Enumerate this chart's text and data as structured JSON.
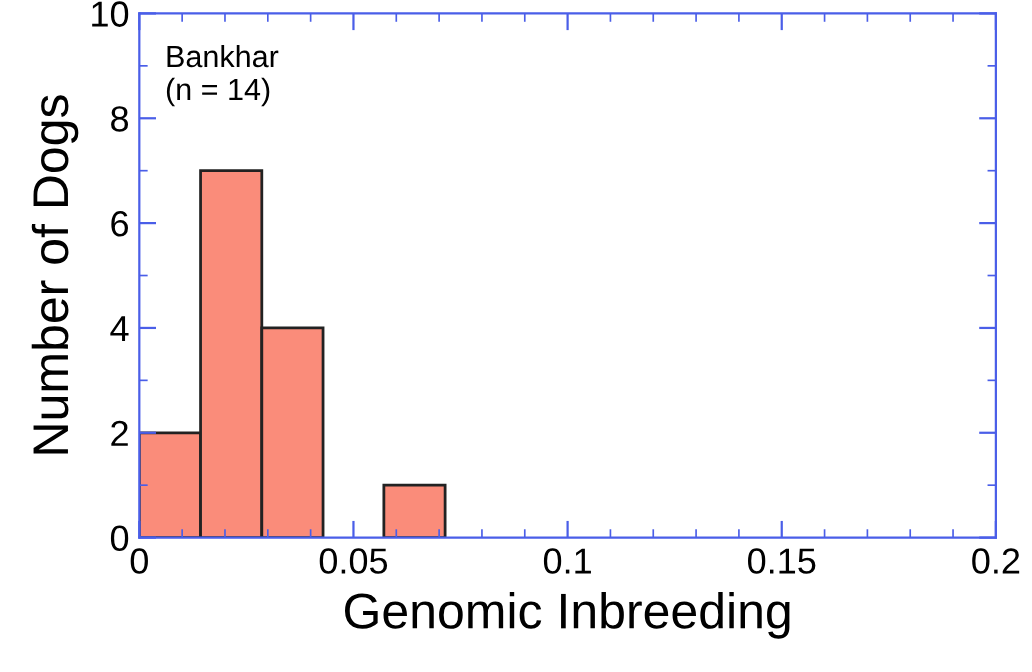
{
  "chart_data": {
    "type": "histogram",
    "xlabel": "Genomic Inbreeding",
    "ylabel": "Number of Dogs",
    "annotations": [
      "Bankhar\n(n = 14)"
    ],
    "bins": [
      0,
      0.0143,
      0.0286,
      0.0429,
      0.0571,
      0.0714
    ],
    "values": [
      2,
      7,
      4,
      0,
      1
    ],
    "color": "#fa8c7a",
    "xlim": [
      0,
      0.2
    ],
    "xticks": [
      0,
      0.05,
      0.1,
      0.15,
      0.2
    ],
    "ylim": [
      0,
      10
    ],
    "yticks": [
      0,
      2,
      4,
      6,
      8,
      10
    ],
    "grid": false,
    "legend": false
  }
}
